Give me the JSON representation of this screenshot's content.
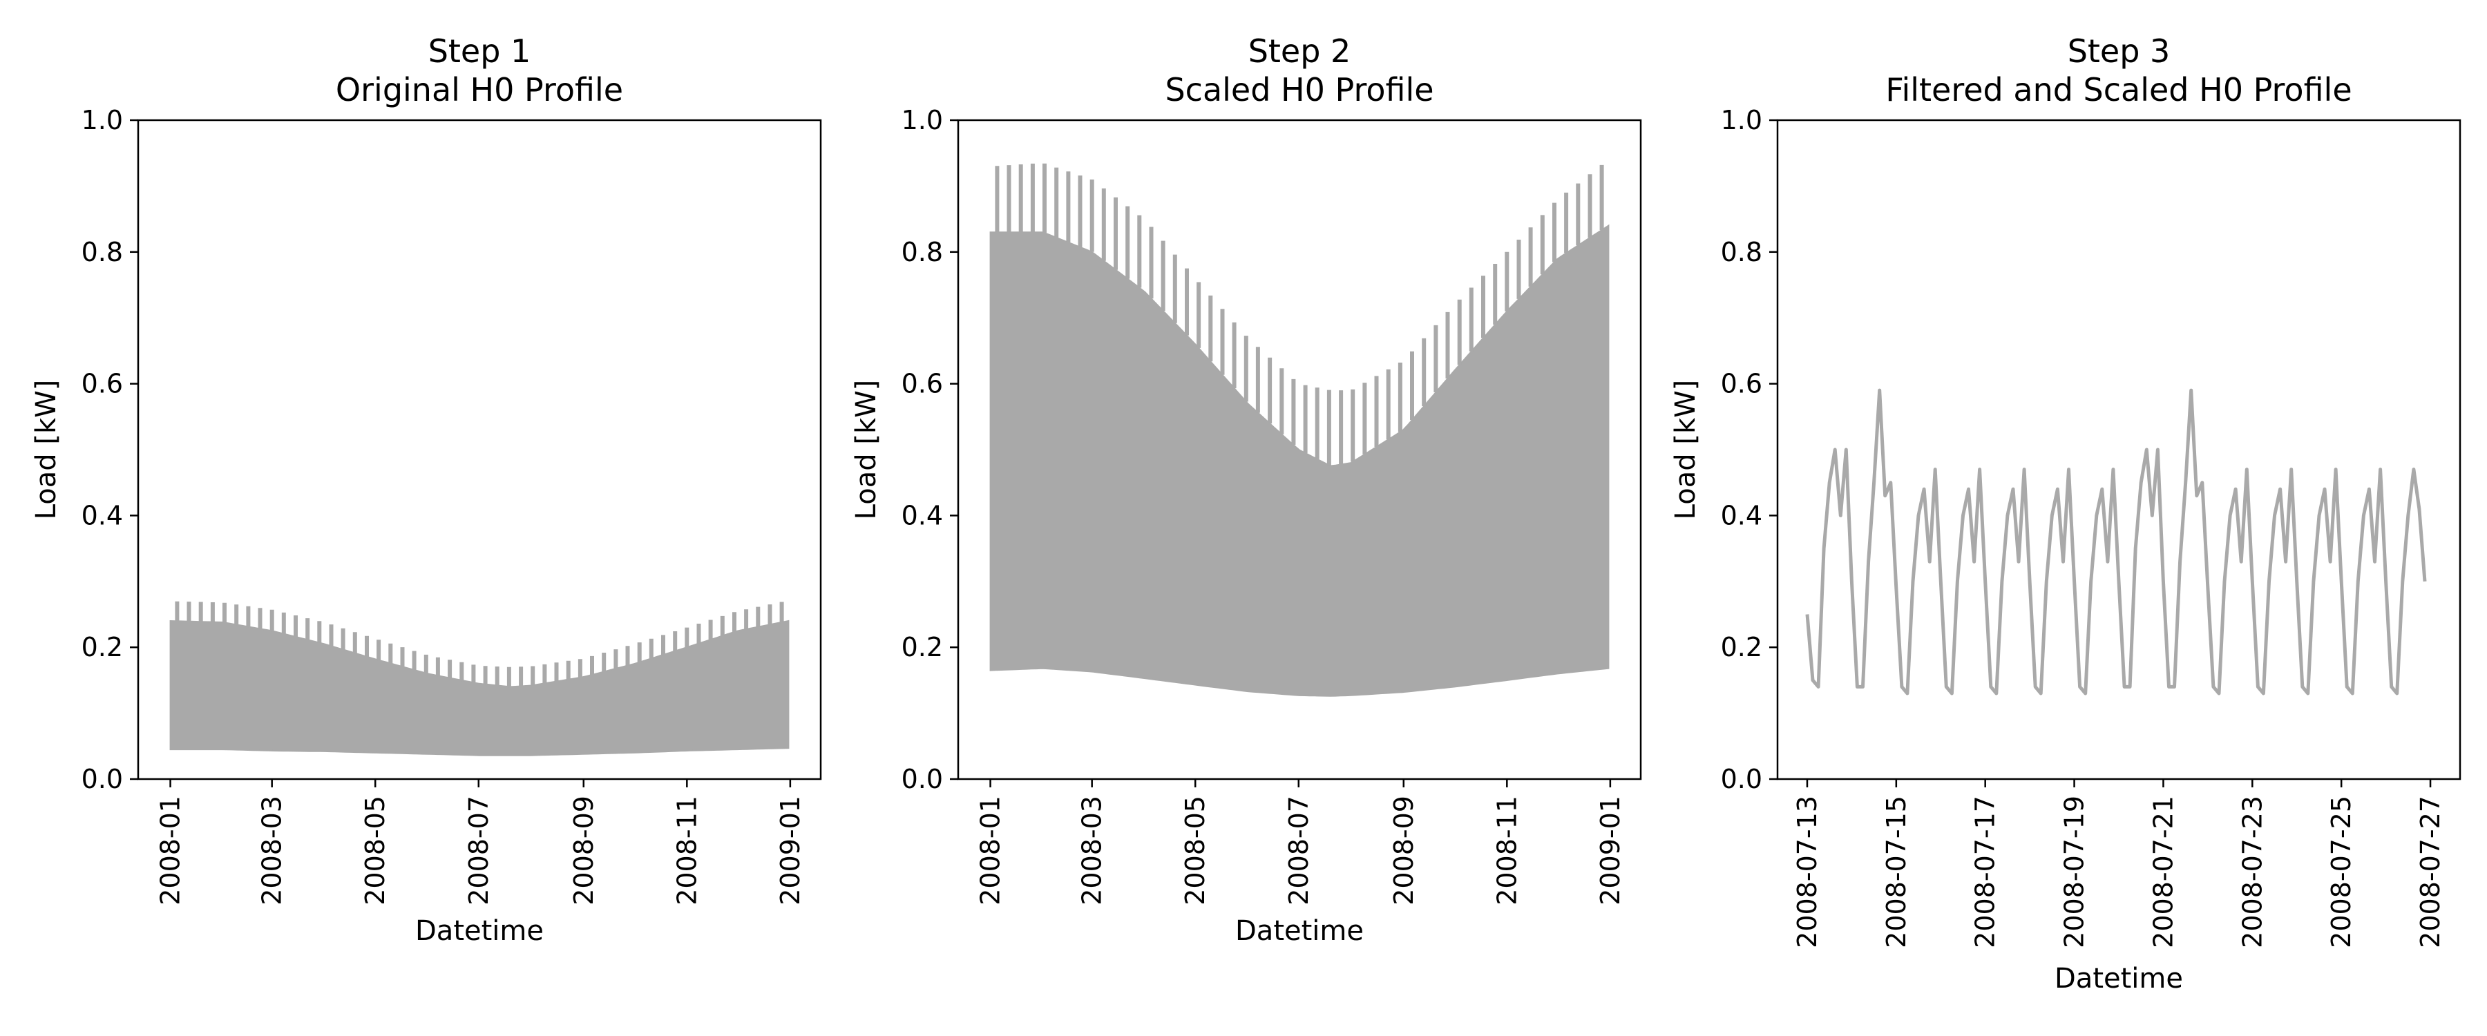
{
  "chart_data": [
    {
      "type": "line",
      "title": "Step 1\nOriginal H0 Profile",
      "xlabel": "Datetime",
      "ylabel": "Load [kW]",
      "ylim": [
        0,
        1
      ],
      "xlim": [
        "2007-12-13",
        "2009-01-19"
      ],
      "x_ticks": [
        "2008-01",
        "2008-03",
        "2008-05",
        "2008-07",
        "2008-09",
        "2008-11",
        "2009-01"
      ],
      "y_ticks": [
        "0.0",
        "0.2",
        "0.4",
        "0.6",
        "0.8",
        "1.0"
      ],
      "grid": false,
      "color": "#a9a9a9",
      "series": [
        {
          "x_range": [
            "2008-01-01",
            "2008-12-31"
          ],
          "envelope": {
            "x": [
              "2008-01-01",
              "2008-02-01",
              "2008-03-01",
              "2008-04-01",
              "2008-05-01",
              "2008-06-01",
              "2008-07-01",
              "2008-07-20",
              "2008-08-01",
              "2008-09-01",
              "2008-10-01",
              "2008-11-01",
              "2008-12-01",
              "2008-12-31"
            ],
            "peak_max": [
              0.27,
              0.268,
              0.257,
              0.238,
              0.213,
              0.188,
              0.172,
              0.17,
              0.171,
              0.183,
              0.205,
              0.23,
              0.255,
              0.271
            ],
            "upper": [
              0.24,
              0.238,
              0.225,
              0.205,
              0.182,
              0.16,
              0.145,
              0.14,
              0.142,
              0.155,
              0.175,
              0.2,
              0.225,
              0.24
            ],
            "lower": [
              0.045,
              0.045,
              0.043,
              0.042,
              0.04,
              0.038,
              0.036,
              0.036,
              0.036,
              0.038,
              0.04,
              0.043,
              0.045,
              0.047
            ]
          }
        }
      ]
    },
    {
      "type": "line",
      "title": "Step 2\nScaled H0 Profile",
      "xlabel": "Datetime",
      "ylabel": "Load [kW]",
      "ylim": [
        0,
        1
      ],
      "xlim": [
        "2007-12-13",
        "2009-01-19"
      ],
      "x_ticks": [
        "2008-01",
        "2008-03",
        "2008-05",
        "2008-07",
        "2008-09",
        "2008-11",
        "2009-01"
      ],
      "y_ticks": [
        "0.0",
        "0.2",
        "0.4",
        "0.6",
        "0.8",
        "1.0"
      ],
      "grid": false,
      "color": "#a9a9a9",
      "series": [
        {
          "x_range": [
            "2008-01-01",
            "2008-12-31"
          ],
          "envelope": {
            "x": [
              "2008-01-01",
              "2008-02-01",
              "2008-03-01",
              "2008-04-01",
              "2008-05-01",
              "2008-06-01",
              "2008-07-01",
              "2008-07-20",
              "2008-08-01",
              "2008-09-01",
              "2008-10-01",
              "2008-11-01",
              "2008-12-01",
              "2008-12-31"
            ],
            "peak_max": [
              0.93,
              0.935,
              0.91,
              0.85,
              0.76,
              0.67,
              0.6,
              0.59,
              0.59,
              0.635,
              0.72,
              0.8,
              0.88,
              0.94
            ],
            "upper": [
              0.83,
              0.83,
              0.8,
              0.74,
              0.66,
              0.57,
              0.5,
              0.475,
              0.48,
              0.53,
              0.62,
              0.71,
              0.79,
              0.84
            ],
            "lower": [
              0.165,
              0.168,
              0.163,
              0.153,
              0.143,
              0.133,
              0.127,
              0.126,
              0.127,
              0.132,
              0.14,
              0.15,
              0.16,
              0.168
            ]
          }
        }
      ]
    },
    {
      "type": "line",
      "title": "Step 3\nFiltered and Scaled H0 Profile",
      "xlabel": "Datetime",
      "ylabel": "Load [kW]",
      "ylim": [
        0,
        1
      ],
      "xlim": [
        "2008-07-12T08:00",
        "2008-07-27T16:00"
      ],
      "x_ticks": [
        "2008-07-13",
        "2008-07-15",
        "2008-07-17",
        "2008-07-19",
        "2008-07-21",
        "2008-07-23",
        "2008-07-25",
        "2008-07-27"
      ],
      "y_ticks": [
        "0.0",
        "0.2",
        "0.4",
        "0.6",
        "0.8",
        "1.0"
      ],
      "grid": false,
      "color": "#a9a9a9",
      "series": [
        {
          "start": "2008-07-13T00:00",
          "interval_hours": 3,
          "values": [
            0.25,
            0.15,
            0.14,
            0.35,
            0.45,
            0.5,
            0.4,
            0.5,
            0.3,
            0.14,
            0.14,
            0.33,
            0.45,
            0.59,
            0.43,
            0.45,
            0.29,
            0.14,
            0.13,
            0.3,
            0.4,
            0.44,
            0.33,
            0.47,
            0.3,
            0.14,
            0.13,
            0.3,
            0.4,
            0.44,
            0.33,
            0.47,
            0.3,
            0.14,
            0.13,
            0.3,
            0.4,
            0.44,
            0.33,
            0.47,
            0.3,
            0.14,
            0.13,
            0.3,
            0.4,
            0.44,
            0.33,
            0.47,
            0.3,
            0.14,
            0.13,
            0.3,
            0.4,
            0.44,
            0.33,
            0.47,
            0.3,
            0.14,
            0.14,
            0.35,
            0.45,
            0.5,
            0.4,
            0.5,
            0.3,
            0.14,
            0.14,
            0.33,
            0.45,
            0.59,
            0.43,
            0.45,
            0.29,
            0.14,
            0.13,
            0.3,
            0.4,
            0.44,
            0.33,
            0.47,
            0.3,
            0.14,
            0.13,
            0.3,
            0.4,
            0.44,
            0.33,
            0.47,
            0.3,
            0.14,
            0.13,
            0.3,
            0.4,
            0.44,
            0.33,
            0.47,
            0.3,
            0.14,
            0.13,
            0.3,
            0.4,
            0.44,
            0.33,
            0.47,
            0.3,
            0.14,
            0.13,
            0.3,
            0.4,
            0.47,
            0.41,
            0.3
          ]
        }
      ]
    }
  ]
}
